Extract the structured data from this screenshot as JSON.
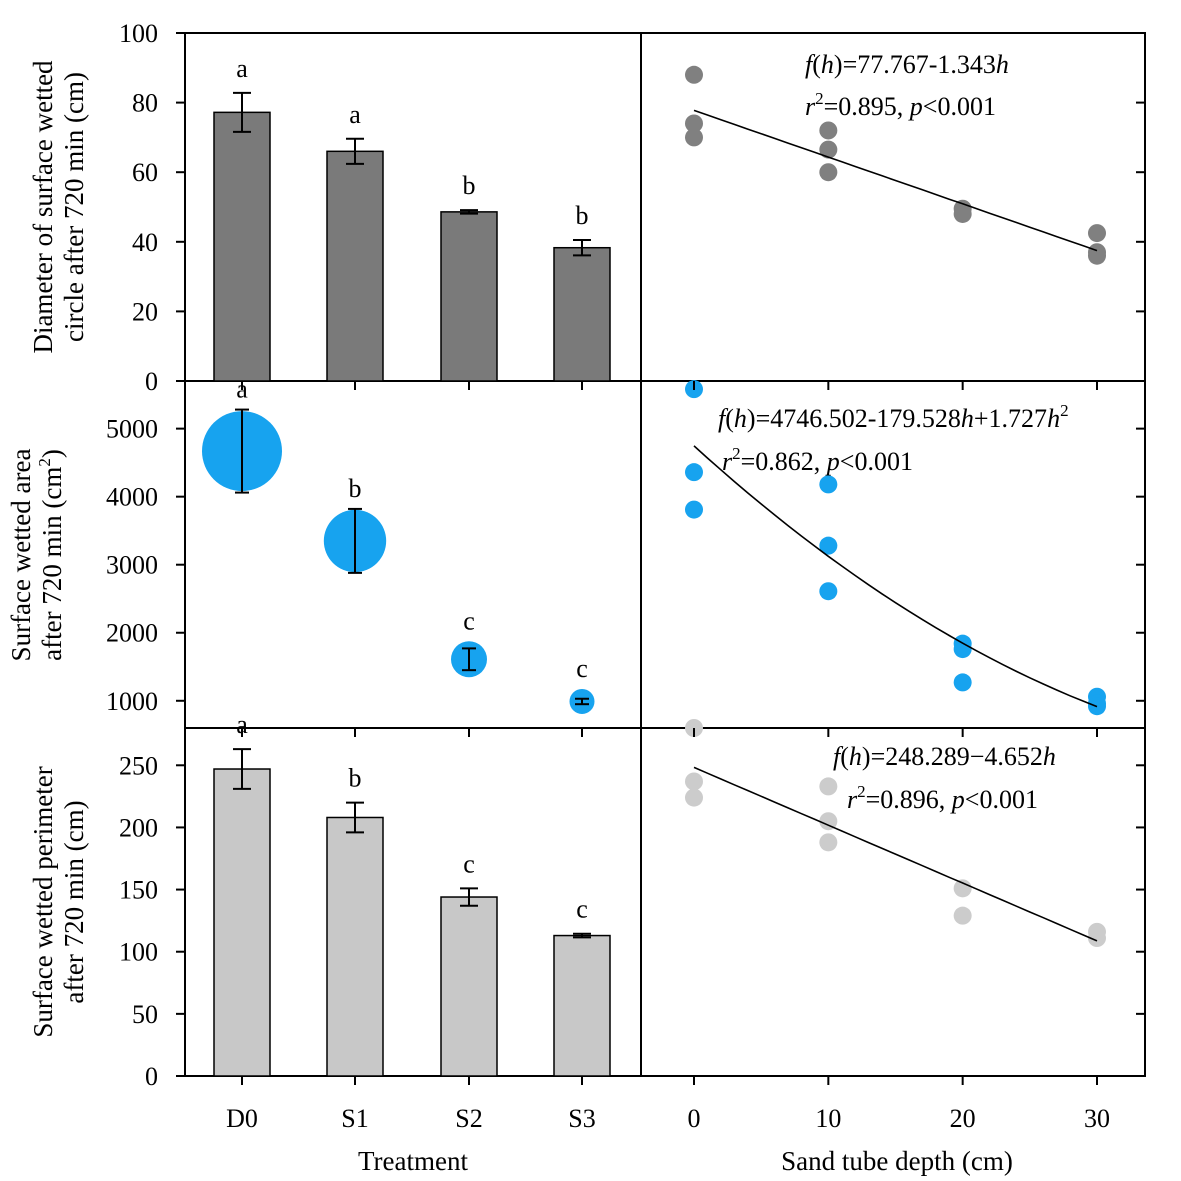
{
  "colors": {
    "dark_gray": "#7a7a7a",
    "blue": "#17a3ef",
    "light_gray": "#c8c8c8",
    "scatter_dark": "#808080",
    "scatter_light": "#cccccc"
  },
  "shared_axes": {
    "x_treatment_label": "Treatment",
    "x_depth_label": "Sand tube depth (cm)",
    "treatment_ticks": [
      "D0",
      "S1",
      "S2",
      "S3"
    ],
    "depth_ticks": [
      "0",
      "10",
      "20",
      "30"
    ]
  },
  "chart_data": [
    {
      "type": "bar",
      "panel": "top-left",
      "ylabel": [
        "Diameter of surface wetted",
        "circle after 720 min (cm)"
      ],
      "categories": [
        "D0",
        "S1",
        "S2",
        "S3"
      ],
      "values": [
        77.2,
        66.0,
        48.6,
        38.3
      ],
      "errors": [
        5.6,
        3.6,
        0.5,
        2.2
      ],
      "letters": [
        "a",
        "a",
        "b",
        "b"
      ],
      "ylim": [
        0,
        100
      ],
      "yticks": [
        0,
        20,
        40,
        60,
        80,
        100
      ],
      "ytick_labels": [
        "0",
        "20",
        "40",
        "60",
        "80",
        "100"
      ]
    },
    {
      "type": "scatter",
      "panel": "top-right",
      "xlim": [
        -4,
        34
      ],
      "ylim": [
        0,
        100
      ],
      "points": [
        [
          0,
          88
        ],
        [
          0,
          74
        ],
        [
          0,
          70
        ],
        [
          10,
          72
        ],
        [
          10,
          66.5
        ],
        [
          10,
          60
        ],
        [
          20,
          49.5
        ],
        [
          20,
          48
        ],
        [
          30,
          42.5
        ],
        [
          30,
          37
        ],
        [
          30,
          36
        ]
      ],
      "fit": {
        "kind": "linear",
        "a": 77.767,
        "b": -1.343
      },
      "equation": {
        "lhs": "f(h)",
        "rhs": "=77.767-1.343h",
        "stats": "r2=0.895, p<0.001"
      }
    },
    {
      "type": "bubble",
      "panel": "middle-left",
      "ylabel": [
        "Surface wetted area",
        "after 720 min (cm2)"
      ],
      "categories": [
        "D0",
        "S1",
        "S2",
        "S3"
      ],
      "values": [
        4670,
        3350,
        1610,
        990
      ],
      "errors": [
        610,
        470,
        160,
        40
      ],
      "letters": [
        "a",
        "b",
        "c",
        "c"
      ],
      "ylim": [
        600,
        5700
      ],
      "yticks": [
        1000,
        2000,
        3000,
        4000,
        5000
      ],
      "ytick_labels": [
        "1000",
        "2000",
        "3000",
        "4000",
        "5000"
      ]
    },
    {
      "type": "scatter",
      "panel": "middle-right",
      "xlim": [
        -4,
        34
      ],
      "ylim": [
        600,
        5700
      ],
      "points": [
        [
          0,
          5580
        ],
        [
          0,
          4360
        ],
        [
          0,
          3810
        ],
        [
          10,
          4180
        ],
        [
          10,
          3280
        ],
        [
          10,
          2610
        ],
        [
          20,
          1840
        ],
        [
          20,
          1760
        ],
        [
          20,
          1270
        ],
        [
          30,
          1060
        ],
        [
          30,
          960
        ],
        [
          30,
          920
        ]
      ],
      "fit": {
        "kind": "quadratic",
        "a": 4746.502,
        "b": -179.528,
        "c": 1.727
      },
      "equation": {
        "lhs": "f(h)",
        "rhs": "=4746.502-179.528h+1.727h2",
        "stats": "r2=0.862,  p<0.001"
      }
    },
    {
      "type": "bar",
      "panel": "bottom-left",
      "ylabel": [
        "Surface wetted perimeter",
        "after 720 min (cm)"
      ],
      "categories": [
        "D0",
        "S1",
        "S2",
        "S3"
      ],
      "values": [
        247,
        208,
        144,
        113
      ],
      "errors": [
        16,
        12,
        7,
        1.5
      ],
      "letters": [
        "a",
        "b",
        "c",
        "c"
      ],
      "ylim": [
        0,
        280
      ],
      "yticks": [
        0,
        50,
        100,
        150,
        200,
        250
      ],
      "ytick_labels": [
        "0",
        "50",
        "100",
        "150",
        "200",
        "250"
      ]
    },
    {
      "type": "scatter",
      "panel": "bottom-right",
      "xlim": [
        -4,
        34
      ],
      "ylim": [
        0,
        280
      ],
      "points": [
        [
          0,
          280
        ],
        [
          0,
          237
        ],
        [
          0,
          224
        ],
        [
          10,
          233
        ],
        [
          10,
          205
        ],
        [
          10,
          188
        ],
        [
          20,
          151
        ],
        [
          20,
          129
        ],
        [
          30,
          116
        ],
        [
          30,
          111
        ]
      ],
      "fit": {
        "kind": "linear",
        "a": 248.289,
        "b": -4.652
      },
      "equation": {
        "lhs": "f(h)",
        "rhs": "=248.289−4.652h",
        "stats": "r2=0.896,  p<0.001"
      }
    }
  ]
}
